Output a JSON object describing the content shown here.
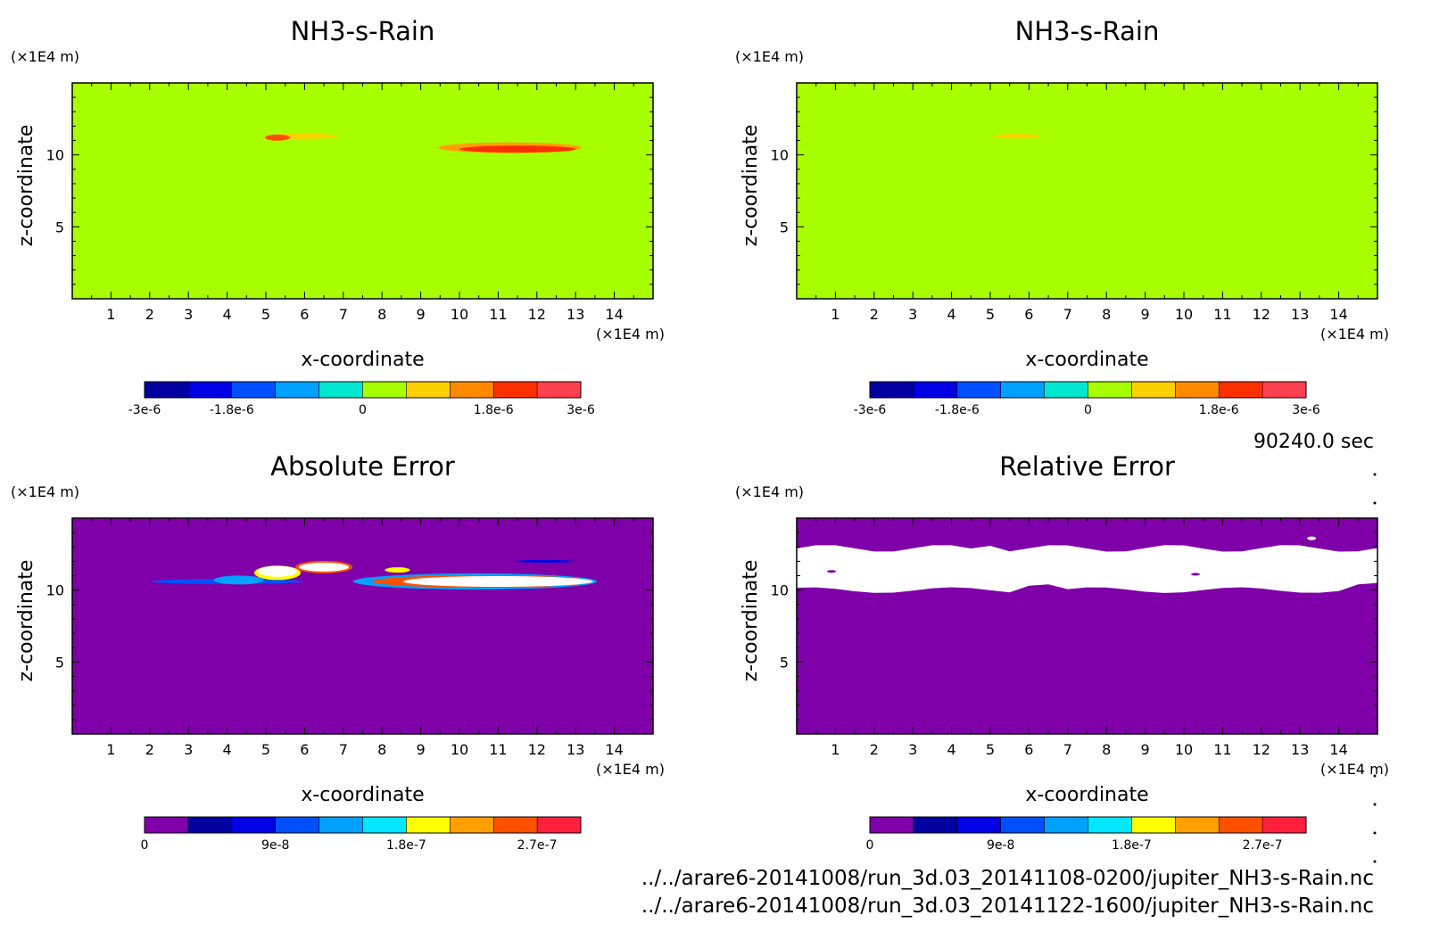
{
  "time_label": "90240.0 sec",
  "files": [
    "../../arare6-20141008/run_3d.03_20141108-0200/jupiter_NH3-s-Rain.nc",
    "../../arare6-20141008/run_3d.03_20141122-1600/jupiter_NH3-s-Rain.nc"
  ],
  "colors": {
    "background_field": "#a8ff00",
    "zero_field": "#7f00a8",
    "white": "#ffffff"
  },
  "chart_data": [
    {
      "type": "heatmap",
      "title": "NH3-s-Rain",
      "xlabel": "x-coordinate",
      "ylabel": "z-coordinate",
      "x_unit": "(×1E4 m)",
      "y_unit": "(×1E4 m)",
      "xlim": [
        0,
        15
      ],
      "ylim": [
        0,
        15
      ],
      "x_ticks": [
        1,
        2,
        3,
        4,
        5,
        6,
        7,
        8,
        9,
        10,
        11,
        12,
        13,
        14
      ],
      "y_ticks": [
        5,
        10
      ],
      "background_value": 0,
      "colorbar": {
        "colors": [
          "#0000a0",
          "#0000e6",
          "#0050ff",
          "#00a0ff",
          "#00e6d0",
          "#a8ff00",
          "#ffd000",
          "#ff8a00",
          "#ff3000",
          "#ff4050"
        ],
        "tick_labels": [
          "-3e-6",
          "-1.8e-6",
          "0",
          "1.8e-6",
          "3e-6"
        ],
        "tick_positions": [
          0,
          0.2,
          0.5,
          0.8,
          1.0
        ]
      },
      "features": [
        {
          "label": "rain band near x=5-7",
          "x_range": [
            5.0,
            6.8
          ],
          "z": 11.2,
          "max_value": 2.4e-06
        },
        {
          "label": "rain band near x=10-13",
          "x_range": [
            9.5,
            13.2
          ],
          "z": 10.5,
          "max_value": 3e-06
        }
      ]
    },
    {
      "type": "heatmap",
      "title": "NH3-s-Rain",
      "xlabel": "x-coordinate",
      "ylabel": "z-coordinate",
      "x_unit": "(×1E4 m)",
      "y_unit": "(×1E4 m)",
      "xlim": [
        0,
        15
      ],
      "ylim": [
        0,
        15
      ],
      "x_ticks": [
        1,
        2,
        3,
        4,
        5,
        6,
        7,
        8,
        9,
        10,
        11,
        12,
        13,
        14
      ],
      "y_ticks": [
        5,
        10
      ],
      "background_value": 0,
      "colorbar": {
        "colors": [
          "#0000a0",
          "#0000e6",
          "#0050ff",
          "#00a0ff",
          "#00e6d0",
          "#a8ff00",
          "#ffd000",
          "#ff8a00",
          "#ff3000",
          "#ff4050"
        ],
        "tick_labels": [
          "-3e-6",
          "-1.8e-6",
          "0",
          "1.8e-6",
          "3e-6"
        ],
        "tick_positions": [
          0,
          0.2,
          0.5,
          0.8,
          1.0
        ]
      },
      "features": [
        {
          "label": "weak rain near x=5-6",
          "x_range": [
            5.0,
            6.2
          ],
          "z": 11.3,
          "max_value": 6e-07
        }
      ]
    },
    {
      "type": "heatmap",
      "title": "Absolute Error",
      "xlabel": "x-coordinate",
      "ylabel": "z-coordinate",
      "x_unit": "(×1E4 m)",
      "y_unit": "(×1E4 m)",
      "xlim": [
        0,
        15
      ],
      "ylim": [
        0,
        15
      ],
      "x_ticks": [
        1,
        2,
        3,
        4,
        5,
        6,
        7,
        8,
        9,
        10,
        11,
        12,
        13,
        14
      ],
      "y_ticks": [
        5,
        10
      ],
      "background_value": 0,
      "colorbar": {
        "colors": [
          "#7f00a8",
          "#0000a0",
          "#0000e6",
          "#0050ff",
          "#00a0ff",
          "#00e6ff",
          "#ffff00",
          "#ffa000",
          "#ff5000",
          "#ff2040"
        ],
        "tick_labels": [
          "0",
          "9e-8",
          "1.8e-7",
          "2.7e-7"
        ],
        "tick_positions": [
          0,
          0.3,
          0.6,
          0.9
        ]
      },
      "features": [
        {
          "label": "error band left",
          "x_range": [
            1.6,
            7.2
          ],
          "z": 10.8,
          "max_value": 3e-07
        },
        {
          "label": "error band right",
          "x_range": [
            7.3,
            13.8
          ],
          "z": 10.6,
          "max_value": 3e-07
        }
      ]
    },
    {
      "type": "heatmap",
      "title": "Relative Error",
      "xlabel": "x-coordinate",
      "ylabel": "z-coordinate",
      "x_unit": "(×1E4 m)",
      "y_unit": "(×1E4 m)",
      "xlim": [
        0,
        15
      ],
      "ylim": [
        0,
        15
      ],
      "x_ticks": [
        1,
        2,
        3,
        4,
        5,
        6,
        7,
        8,
        9,
        10,
        11,
        12,
        13,
        14
      ],
      "y_ticks": [
        5,
        10
      ],
      "background_value": 0,
      "colorbar": {
        "colors": [
          "#7f00a8",
          "#0000a0",
          "#0000e6",
          "#0050ff",
          "#00a0ff",
          "#00e6ff",
          "#ffff00",
          "#ffa000",
          "#ff5000",
          "#ff2040"
        ],
        "tick_labels": [
          "0",
          "9e-8",
          "1.8e-7",
          "2.7e-7"
        ],
        "tick_positions": [
          0,
          0.3,
          0.6,
          0.9
        ]
      },
      "features": [
        {
          "label": "undefined (white) band",
          "z_range": [
            10.0,
            13.0
          ]
        }
      ]
    }
  ]
}
